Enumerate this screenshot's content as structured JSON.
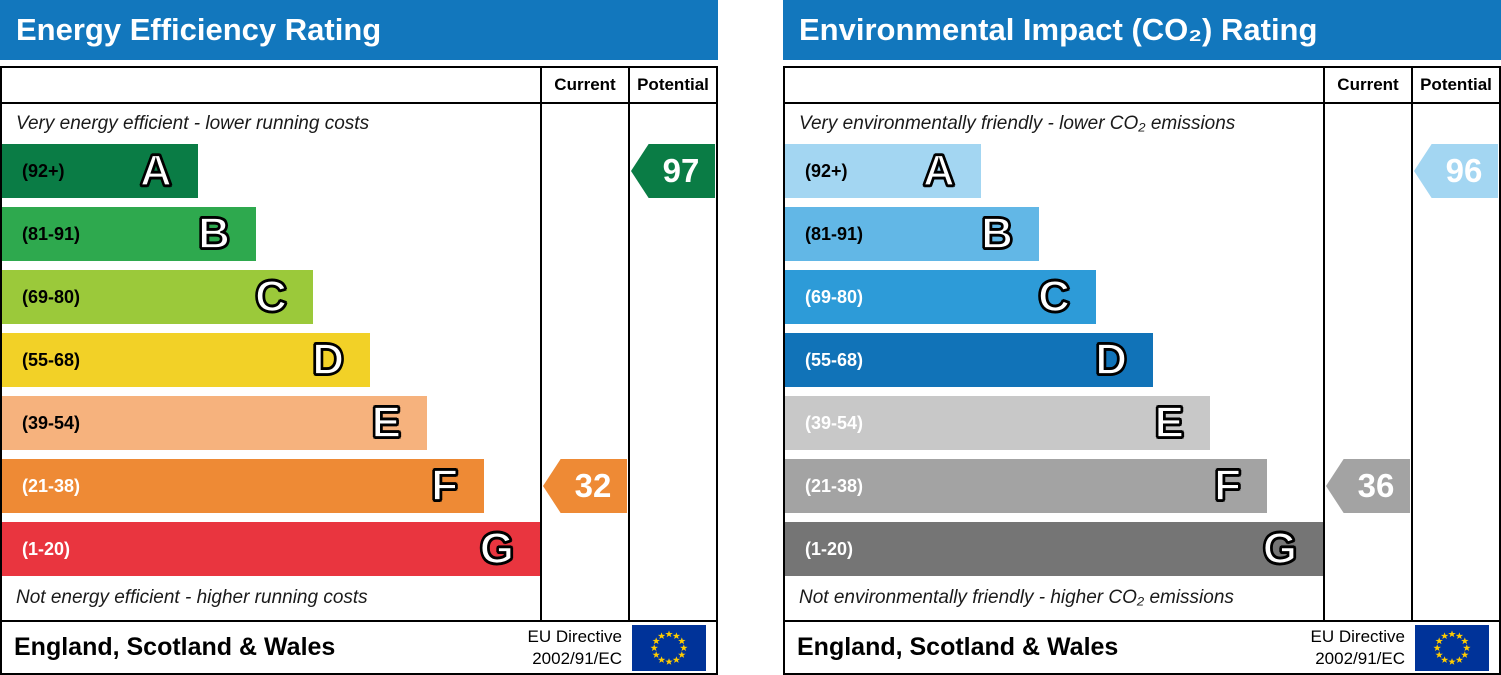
{
  "chart_data": [
    {
      "type": "bar",
      "title": "Energy Efficiency Rating",
      "categories": [
        "A (92+)",
        "B (81-91)",
        "C (69-80)",
        "D (55-68)",
        "E (39-54)",
        "F (21-38)",
        "G (1-20)"
      ],
      "bar_width_pct": [
        36.4,
        47.2,
        57.8,
        68.4,
        79,
        89.6,
        100
      ],
      "current": 32,
      "current_band": "F",
      "potential": 97,
      "potential_band": "A",
      "region": "England, Scotland & Wales"
    },
    {
      "type": "bar",
      "title": "Environmental Impact (CO₂) Rating",
      "categories": [
        "A (92+)",
        "B (81-91)",
        "C (69-80)",
        "D (55-68)",
        "E (39-54)",
        "F (21-38)",
        "G (1-20)"
      ],
      "bar_width_pct": [
        36.4,
        47.2,
        57.8,
        68.4,
        79,
        89.6,
        100
      ],
      "current": 36,
      "current_band": "F",
      "potential": 96,
      "potential_band": "A",
      "region": "England, Scotland & Wales"
    }
  ],
  "panels": [
    {
      "title": "Energy Efficiency Rating",
      "columns": {
        "current": "Current",
        "potential": "Potential"
      },
      "caption_top": "Very energy efficient - lower running costs",
      "caption_bottom": "Not energy efficient - higher running costs",
      "bands": [
        {
          "letter": "A",
          "range": "(92+)",
          "color": "#0a7c45",
          "text_color": "#000000",
          "width_pct": 36.4
        },
        {
          "letter": "B",
          "range": "(81-91)",
          "color": "#2ea94e",
          "text_color": "#000000",
          "width_pct": 47.2
        },
        {
          "letter": "C",
          "range": "(69-80)",
          "color": "#9bc93a",
          "text_color": "#000000",
          "width_pct": 57.8
        },
        {
          "letter": "D",
          "range": "(55-68)",
          "color": "#f2d127",
          "text_color": "#000000",
          "width_pct": 68.4
        },
        {
          "letter": "E",
          "range": "(39-54)",
          "color": "#f6b27d",
          "text_color": "#000000",
          "width_pct": 79
        },
        {
          "letter": "F",
          "range": "(21-38)",
          "color": "#ee8a35",
          "text_color": "#ffffff",
          "width_pct": 89.6
        },
        {
          "letter": "G",
          "range": "(1-20)",
          "color": "#e9353f",
          "text_color": "#ffffff",
          "width_pct": 100
        }
      ],
      "current": {
        "value": "32",
        "band_index": 5,
        "color": "#ee8a35"
      },
      "potential": {
        "value": "97",
        "band_index": 0,
        "color": "#0a7c45"
      },
      "footer": {
        "region": "England, Scotland & Wales",
        "directive_line1": "EU Directive",
        "directive_line2": "2002/91/EC"
      }
    },
    {
      "title": "Environmental Impact (CO₂) Rating",
      "columns": {
        "current": "Current",
        "potential": "Potential"
      },
      "caption_top": "Very environmentally friendly - lower CO₂ emissions",
      "caption_bottom": "Not environmentally friendly - higher CO₂ emissions",
      "bands": [
        {
          "letter": "A",
          "range": "(92+)",
          "color": "#a3d6f2",
          "text_color": "#000000",
          "width_pct": 36.4
        },
        {
          "letter": "B",
          "range": "(81-91)",
          "color": "#62b7e6",
          "text_color": "#000000",
          "width_pct": 47.2
        },
        {
          "letter": "C",
          "range": "(69-80)",
          "color": "#2d9bd8",
          "text_color": "#ffffff",
          "width_pct": 57.8
        },
        {
          "letter": "D",
          "range": "(55-68)",
          "color": "#1173b8",
          "text_color": "#ffffff",
          "width_pct": 68.4
        },
        {
          "letter": "E",
          "range": "(39-54)",
          "color": "#c8c8c8",
          "text_color": "#ffffff",
          "width_pct": 79
        },
        {
          "letter": "F",
          "range": "(21-38)",
          "color": "#a3a3a3",
          "text_color": "#ffffff",
          "width_pct": 89.6
        },
        {
          "letter": "G",
          "range": "(1-20)",
          "color": "#757575",
          "text_color": "#ffffff",
          "width_pct": 100
        }
      ],
      "current": {
        "value": "36",
        "band_index": 5,
        "color": "#a3a3a3"
      },
      "potential": {
        "value": "96",
        "band_index": 0,
        "color": "#a3d6f2"
      },
      "footer": {
        "region": "England, Scotland & Wales",
        "directive_line1": "EU Directive",
        "directive_line2": "2002/91/EC"
      }
    }
  ],
  "colors": {
    "header_blue": "#1277bd",
    "eu_flag_blue": "#003399",
    "eu_star_yellow": "#ffcc00",
    "border": "#000000"
  }
}
